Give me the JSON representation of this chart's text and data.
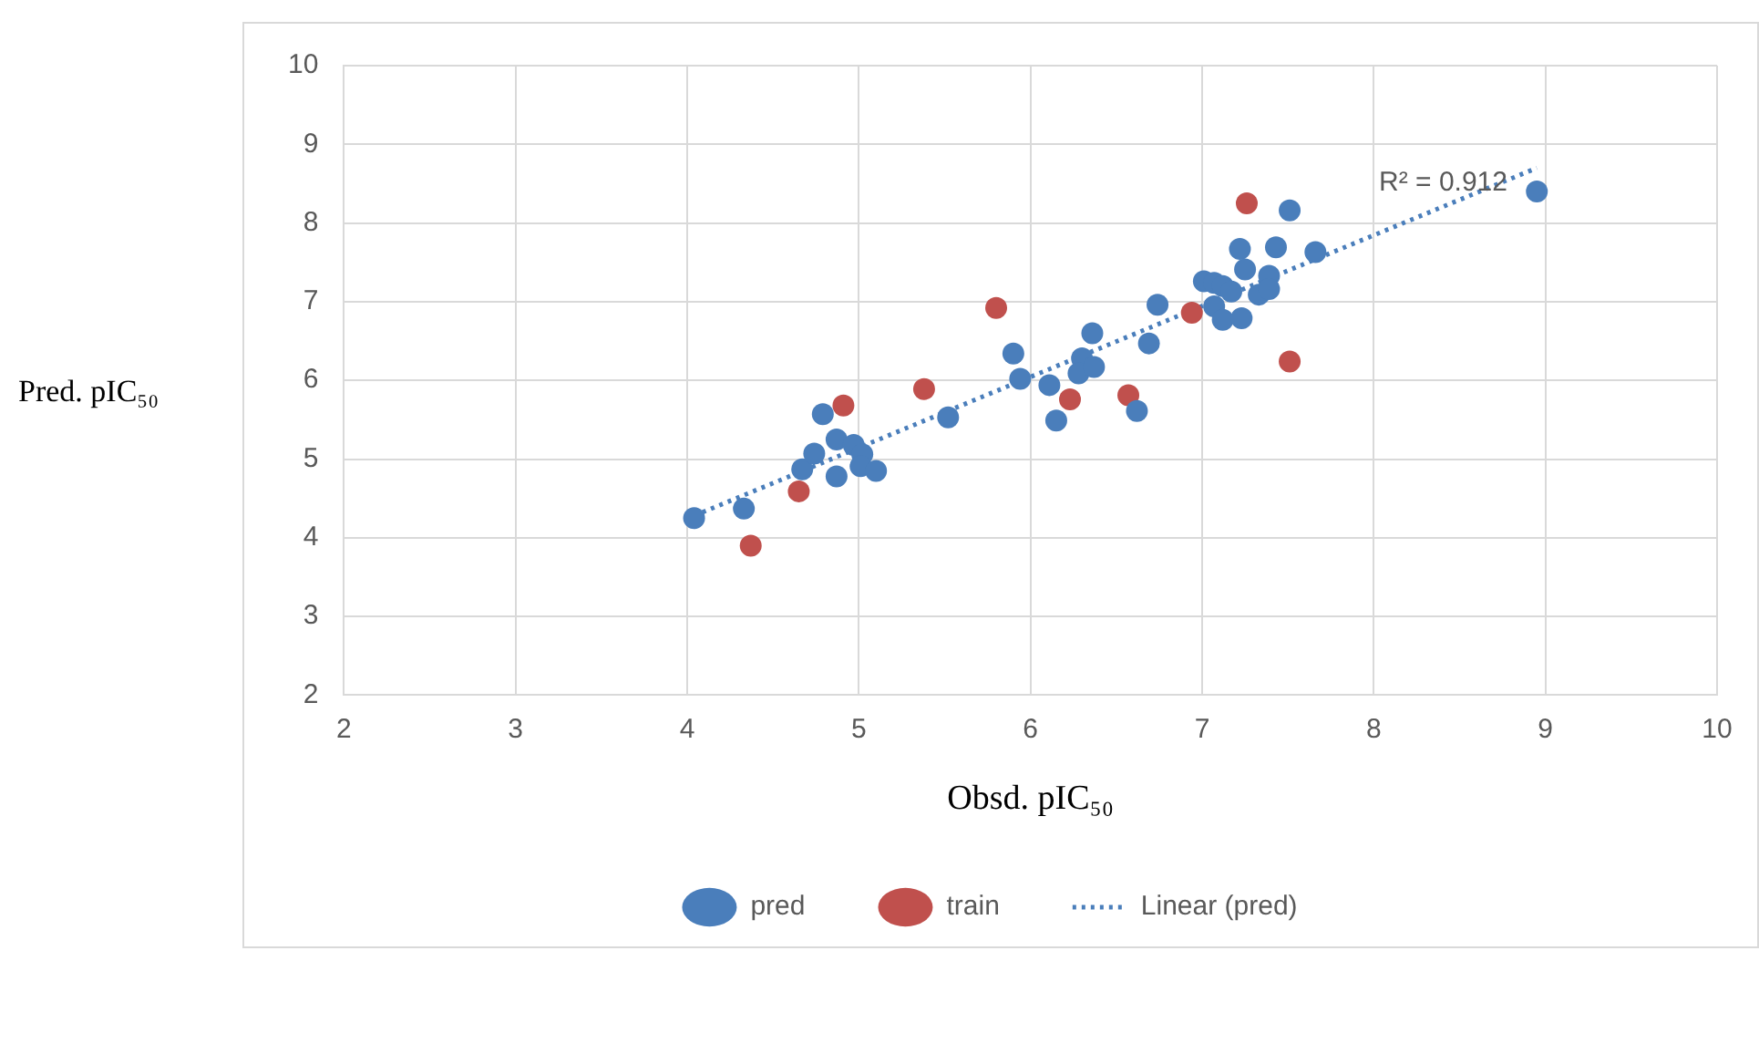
{
  "chart_data": {
    "type": "scatter",
    "xlabel": "Obsd. pIC₅₀",
    "ylabel": "Pred. pIC₅₀",
    "xlim": [
      2,
      10
    ],
    "xticks": [
      2,
      3,
      4,
      5,
      6,
      7,
      8,
      9,
      10
    ],
    "ylim": [
      2,
      10
    ],
    "yticks": [
      2,
      3,
      4,
      5,
      6,
      7,
      8,
      9,
      10
    ],
    "grid": true,
    "legend": "bottom",
    "marker": "circle",
    "annotations": [
      "R² = 0.912"
    ],
    "series": [
      {
        "name": "pred",
        "color": "#4a7ebb",
        "x": [
          4.04,
          4.33,
          4.67,
          4.74,
          4.79,
          4.87,
          4.87,
          4.97,
          5.02,
          5.01,
          5.1,
          5.52,
          5.9,
          5.94,
          6.11,
          6.15,
          6.36,
          6.3,
          6.28,
          6.37,
          6.62,
          6.69,
          6.74,
          8.95,
          7.51,
          7.22,
          7.43,
          7.66,
          7.25,
          7.01,
          7.07,
          7.12,
          7.17,
          7.39,
          7.33,
          7.07,
          7.12,
          7.23,
          7.39
        ],
        "values": [
          4.25,
          4.37,
          4.87,
          5.07,
          5.57,
          5.25,
          4.78,
          5.18,
          5.06,
          4.91,
          4.85,
          5.53,
          6.34,
          6.02,
          5.94,
          5.49,
          6.6,
          6.28,
          6.09,
          6.17,
          5.61,
          6.47,
          6.96,
          8.4,
          8.16,
          7.67,
          7.69,
          7.63,
          7.41,
          7.26,
          7.24,
          7.2,
          7.13,
          7.33,
          7.09,
          6.94,
          6.77,
          6.79,
          7.16
        ]
      },
      {
        "name": "train",
        "color": "#c0504d",
        "x": [
          5.8,
          6.23,
          6.57,
          6.94,
          7.51,
          5.38,
          4.91,
          4.65,
          4.37,
          7.26
        ],
        "values": [
          6.92,
          5.76,
          5.81,
          6.86,
          6.24,
          5.89,
          5.68,
          4.59,
          3.9,
          8.25
        ]
      },
      {
        "name": "Linear (pred)",
        "type": "line",
        "color": "#4a7ebb",
        "marker": "none",
        "line_style": "dotted",
        "x": [
          4.04,
          8.95
        ],
        "values": [
          4.28,
          8.7
        ]
      }
    ]
  }
}
